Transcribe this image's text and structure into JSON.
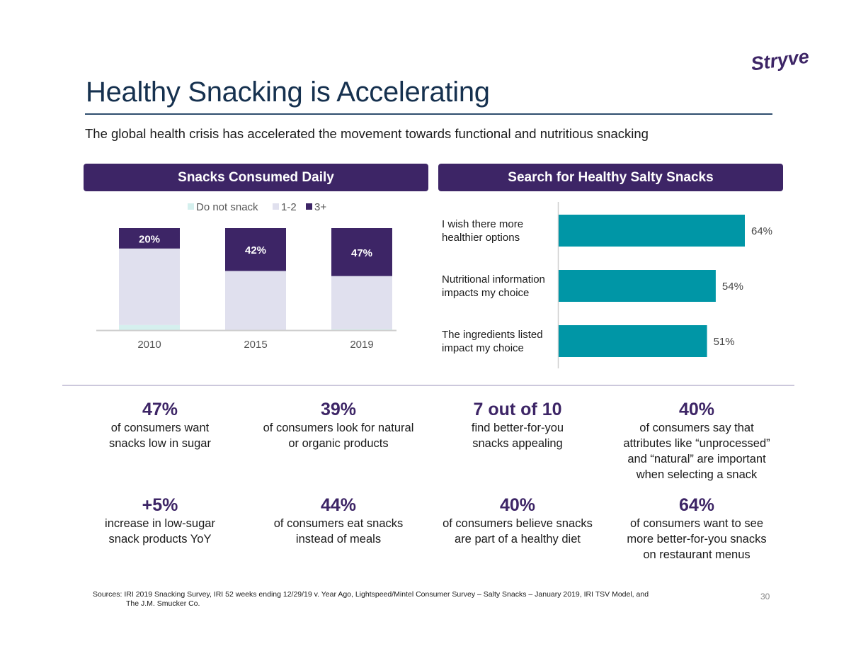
{
  "brand": {
    "logo_text": "Stryve",
    "color": "#3d2566"
  },
  "title": "Healthy Snacking is Accelerating",
  "subtitle": "The global health crisis has accelerated the movement towards functional and nutritious snacking",
  "colors": {
    "purple": "#3d2566",
    "lavender": "#e0e0ee",
    "mint": "#d5f0ee",
    "teal": "#0096a6",
    "axis": "#cfcfcf"
  },
  "chart_data": [
    {
      "type": "bar",
      "stacked": true,
      "title": "Snacks Consumed Daily",
      "categories": [
        "2010",
        "2015",
        "2019"
      ],
      "series": [
        {
          "name": "Do not snack",
          "values": [
            5,
            0,
            1
          ]
        },
        {
          "name": "1-2",
          "values": [
            75,
            58,
            52
          ]
        },
        {
          "name": "3+",
          "values": [
            20,
            42,
            47
          ]
        }
      ],
      "data_labels": {
        "3+": [
          "20%",
          "42%",
          "47%"
        ]
      },
      "legend": {
        "position": "top",
        "entries": [
          "Do not snack",
          "1-2",
          "3+"
        ]
      },
      "ylim": [
        0,
        100
      ],
      "xlabel": "",
      "ylabel": "",
      "grid": false
    },
    {
      "type": "bar",
      "orientation": "horizontal",
      "title": "Search for Healthy Salty Snacks",
      "categories": [
        [
          "I wish there more",
          "healthier options"
        ],
        [
          "Nutritional information",
          "impacts my choice"
        ],
        [
          "The ingredients listed",
          "impact my choice"
        ]
      ],
      "values": [
        64,
        54,
        51
      ],
      "data_labels": [
        "64%",
        "54%",
        "51%"
      ],
      "xlim": [
        0,
        100
      ],
      "xlabel": "",
      "ylabel": "",
      "grid": false
    }
  ],
  "stats": [
    {
      "big": "47%",
      "lines": [
        "of consumers want",
        "snacks low in sugar"
      ]
    },
    {
      "big": "39%",
      "lines": [
        "of consumers look for natural",
        "or organic products"
      ]
    },
    {
      "big": "7 out of 10",
      "lines": [
        "find better-for-you",
        "snacks appealing"
      ]
    },
    {
      "big": "40%",
      "lines": [
        "of consumers say that",
        "attributes like “unprocessed”",
        "and “natural” are important",
        "when selecting a snack"
      ]
    },
    {
      "big": "+5%",
      "lines": [
        "increase in low-sugar",
        "snack products YoY"
      ]
    },
    {
      "big": "44%",
      "lines": [
        "of consumers eat snacks",
        "instead of meals"
      ]
    },
    {
      "big": "40%",
      "lines": [
        "of consumers believe snacks",
        "are part of a healthy diet"
      ]
    },
    {
      "big": "64%",
      "lines": [
        "of consumers want to see",
        "more better-for-you snacks",
        "on restaurant menus"
      ]
    }
  ],
  "footer": {
    "sources_line1": "Sources: IRI 2019 Snacking Survey, IRI 52 weeks ending 12/29/19 v. Year Ago, Lightspeed/Mintel Consumer Survey – Salty Snacks – January 2019, IRI TSV Model, and",
    "sources_line2": "The J.M. Smucker Co.",
    "page_number": "30"
  }
}
